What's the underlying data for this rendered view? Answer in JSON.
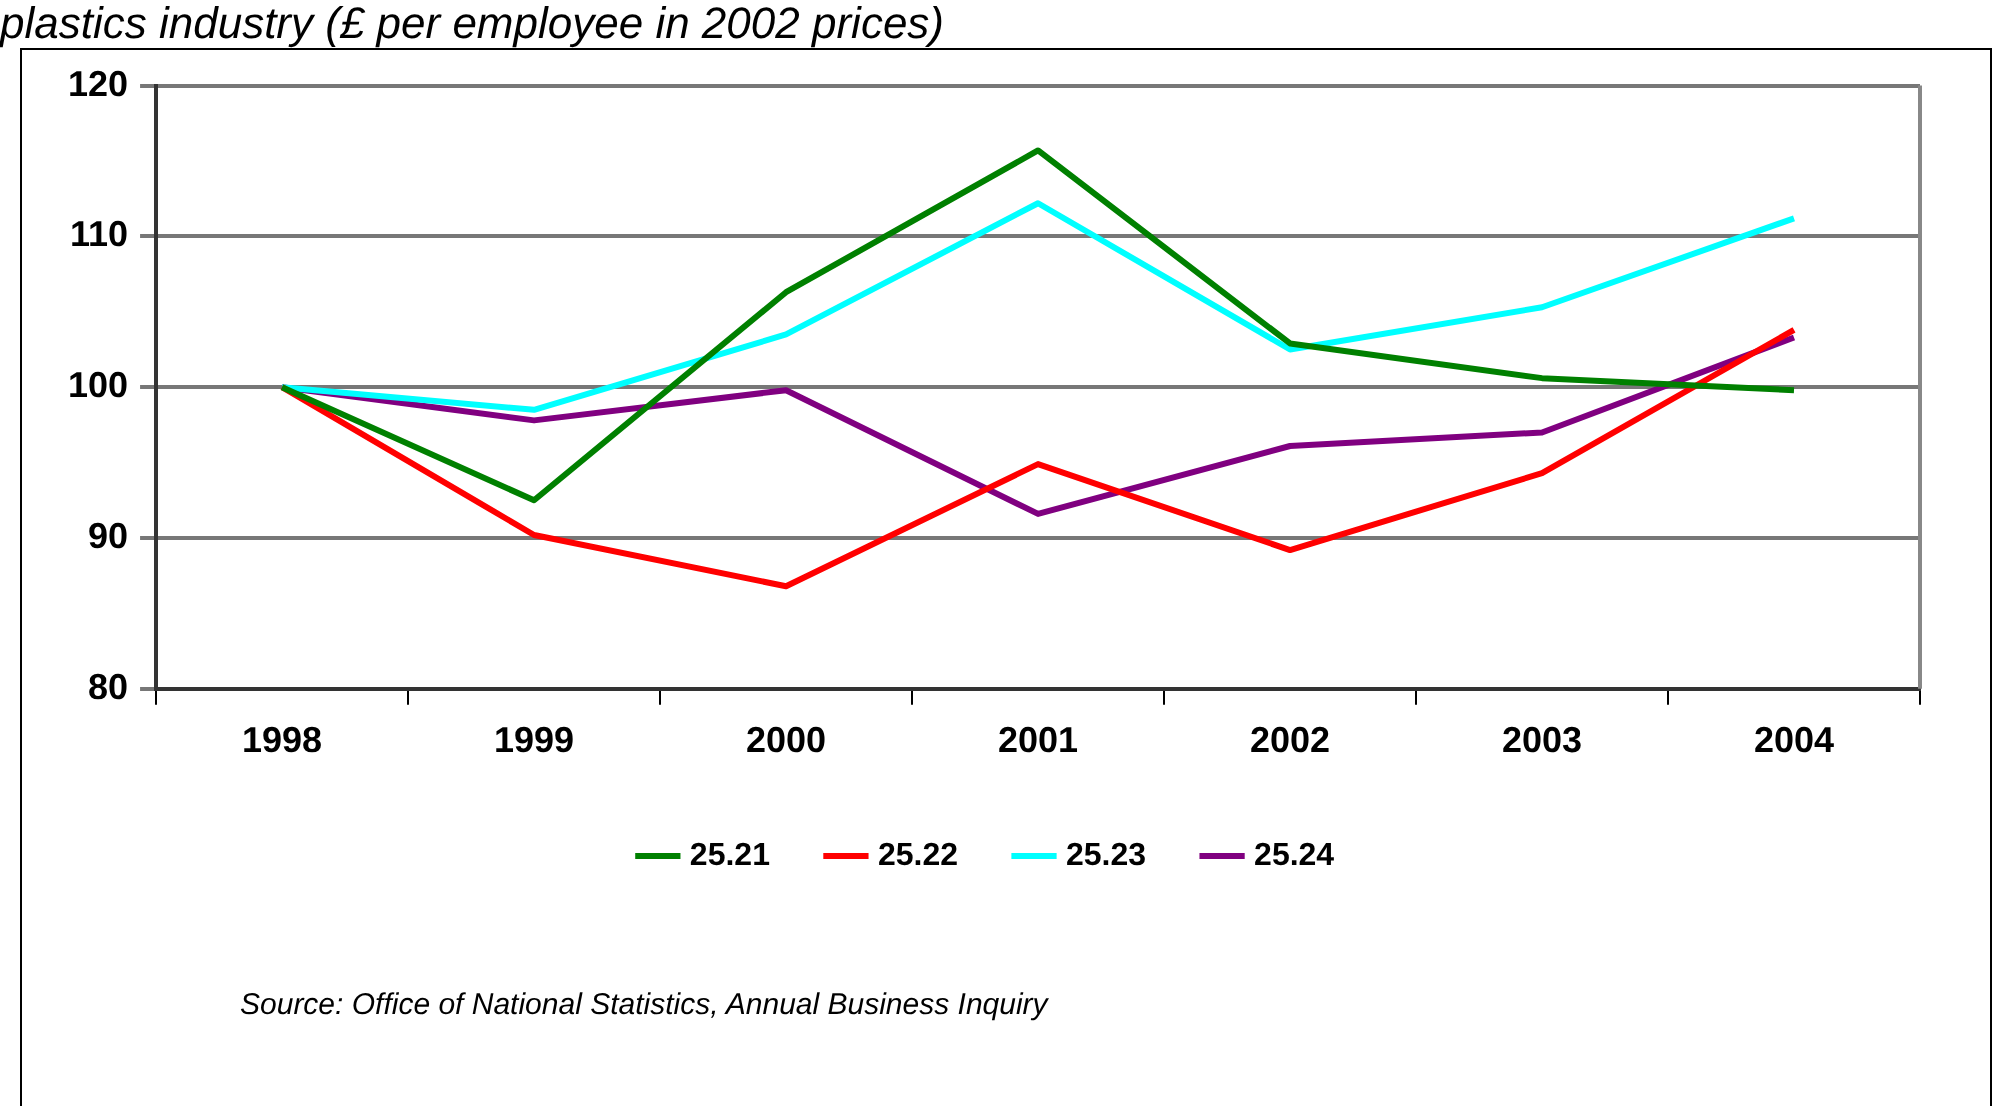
{
  "chart_data": {
    "type": "line",
    "title": "plastics industry (£ per employee in 2002 prices)",
    "categories": [
      "1998",
      "1999",
      "2000",
      "2001",
      "2002",
      "2003",
      "2004"
    ],
    "series": [
      {
        "name": "25.21",
        "color": "#008000",
        "values": [
          100,
          92.5,
          106.3,
          115.7,
          102.9,
          100.6,
          99.8
        ]
      },
      {
        "name": "25.22",
        "color": "#ff0000",
        "values": [
          100,
          90.2,
          86.8,
          94.9,
          89.2,
          94.3,
          103.8
        ]
      },
      {
        "name": "25.23",
        "color": "#00ffff",
        "values": [
          100,
          98.5,
          103.5,
          112.2,
          102.5,
          105.3,
          111.2
        ]
      },
      {
        "name": "25.24",
        "color": "#800080",
        "values": [
          100,
          97.8,
          99.8,
          91.6,
          96.1,
          97.0,
          103.3
        ]
      }
    ],
    "ylim": [
      80,
      120
    ],
    "yticks": [
      80,
      90,
      100,
      110,
      120
    ],
    "grid": "y",
    "legend": "bottom",
    "marker": "none",
    "line_style": "solid",
    "annotations": [
      "Source: Office of National Statistics, Annual Business Inquiry"
    ]
  }
}
